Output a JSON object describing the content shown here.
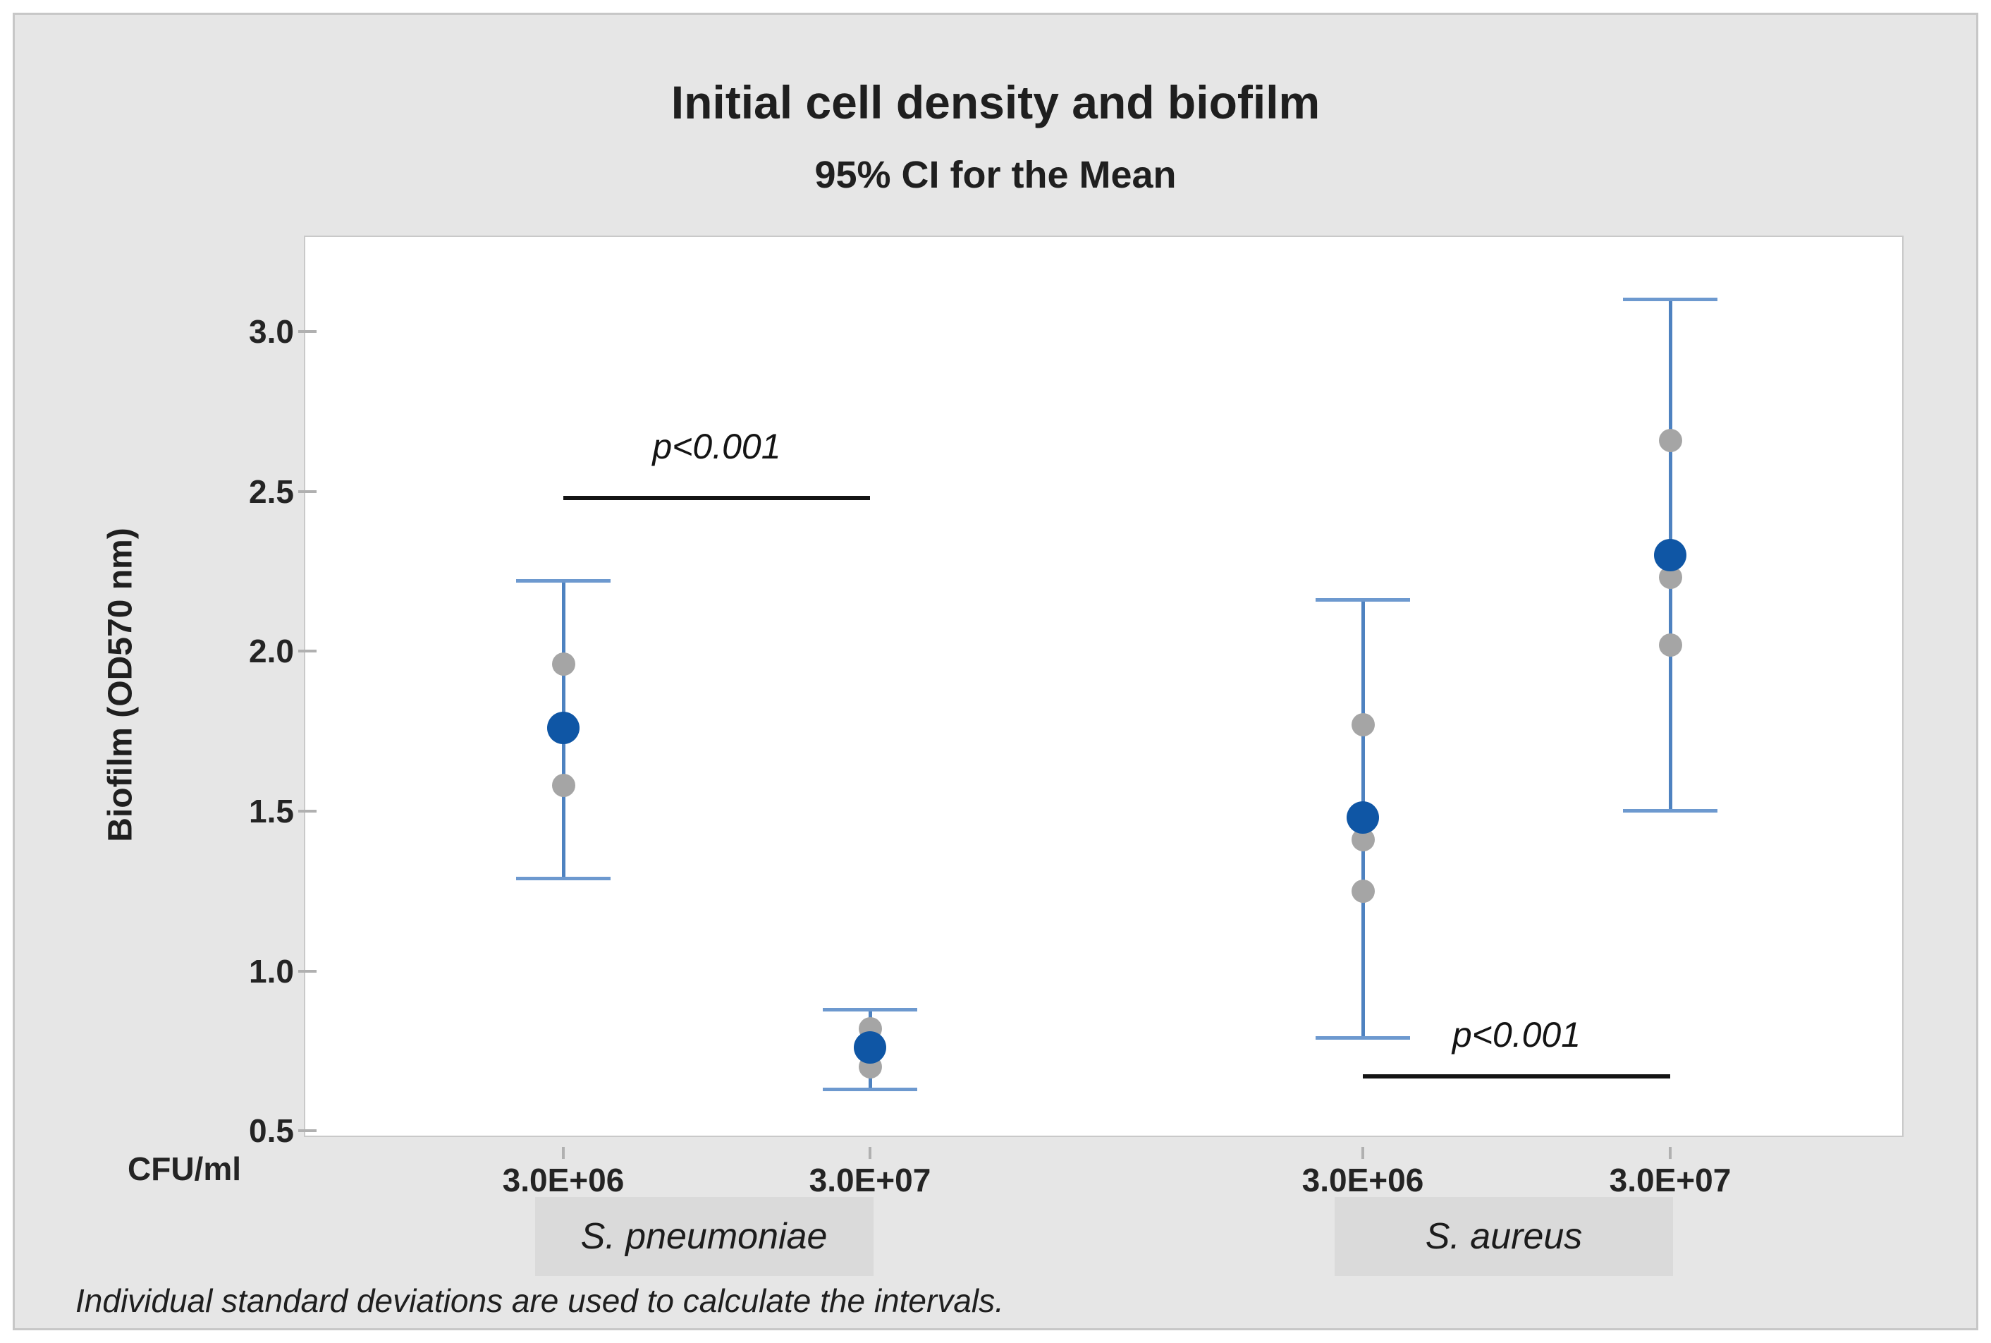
{
  "chart": {
    "title": "Initial cell density and biofilm",
    "subtitle": "95% CI for the Mean",
    "y_axis_label": "Biofilm (OD570 nm)",
    "x_axis_unit_label": "CFU/ml",
    "footnote": "Individual standard deviations are used to calculate the intervals.",
    "colors": {
      "canvas_bg": "#e6e6e6",
      "plot_bg": "#ffffff",
      "mean_point": "#0f56a5",
      "interval_line": "#4e82c0",
      "interval_cap": "#6d99cf",
      "individual_point": "#a5a5a5",
      "species_band_bg": "#dadada",
      "significance_bar": "#141414",
      "tick": "#b0b0b0",
      "text": "#242424"
    }
  },
  "chart_data": {
    "type": "scatter",
    "subtype": "interval-plot-95ci",
    "title": "Initial cell density and biofilm",
    "subtitle": "95% CI for the Mean",
    "xlabel": "CFU/ml",
    "ylabel": "Biofilm (OD570 nm)",
    "ylim": [
      0.45,
      3.26
    ],
    "y_ticks": [
      3.0,
      2.5,
      2.0,
      1.5,
      1.0,
      0.5
    ],
    "grid": false,
    "legend": "none",
    "groups": [
      {
        "species": "S. pneumoniae",
        "cfu": "3.0E+06",
        "mean": 1.76,
        "ci_low": 1.29,
        "ci_high": 2.22,
        "individual_points": [
          1.96,
          1.58
        ]
      },
      {
        "species": "S. pneumoniae",
        "cfu": "3.0E+07",
        "mean": 0.76,
        "ci_low": 0.63,
        "ci_high": 0.88,
        "individual_points": [
          0.82,
          0.7
        ]
      },
      {
        "species": "S. aureus",
        "cfu": "3.0E+06",
        "mean": 1.48,
        "ci_low": 0.79,
        "ci_high": 2.16,
        "individual_points": [
          1.77,
          1.41,
          1.25
        ]
      },
      {
        "species": "S. aureus",
        "cfu": "3.0E+07",
        "mean": 2.3,
        "ci_low": 1.5,
        "ci_high": 3.1,
        "individual_points": [
          2.66,
          2.23,
          2.02
        ]
      }
    ],
    "species_bands": [
      "S. pneumoniae",
      "S. aureus"
    ],
    "significance": [
      {
        "between_groups": [
          0,
          1
        ],
        "label": "p<0.001",
        "bar_y_value": 2.48,
        "label_y_value": 2.64
      },
      {
        "between_groups": [
          2,
          3
        ],
        "label": "p<0.001",
        "bar_y_value": 0.67,
        "label_y_value": 0.8
      }
    ],
    "footnote": "Individual standard deviations are used to calculate the intervals."
  }
}
